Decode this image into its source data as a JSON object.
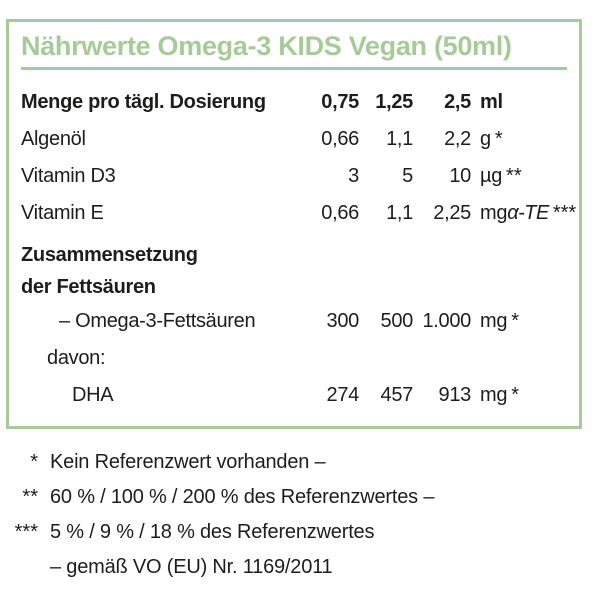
{
  "colors": {
    "accent": "#a6cb98",
    "text": "#1d1d1b"
  },
  "box": {
    "title": "Nährwerte Omega-3 KIDS Vegan (50ml)"
  },
  "table": {
    "rows": [
      {
        "label": "Menge pro tägl. Dosierung",
        "v1": "0,75",
        "v2": "1,25",
        "v3": "2,5",
        "unit": "ml",
        "marker": ""
      },
      {
        "label": "Algenöl",
        "v1": "0,66",
        "v2": "1,1",
        "v3": "2,2",
        "unit": "g",
        "marker": "*"
      },
      {
        "label": "Vitamin D3",
        "v1": "3",
        "v2": "5",
        "v3": "10",
        "unit": "µg",
        "marker": "**"
      },
      {
        "label": "Vitamin E",
        "v1": "0,66",
        "v2": "1,1",
        "v3": "2,25",
        "unit": "mg",
        "unit_suffix": "α-TE",
        "marker": "***"
      },
      {
        "label_line1": "Zusammensetzung",
        "label_line2": "der Fettsäuren"
      },
      {
        "label": "– Omega-3-Fettsäuren",
        "v1": "300",
        "v2": "500",
        "v3": "1.000",
        "unit": "mg",
        "marker": "*"
      },
      {
        "label": "davon:"
      },
      {
        "label": "DHA",
        "v1": "274",
        "v2": "457",
        "v3": "913",
        "unit": "mg",
        "marker": "*"
      }
    ]
  },
  "footnotes": [
    {
      "marker": "*",
      "text": "Kein Referenzwert vorhanden –"
    },
    {
      "marker": "**",
      "text": "60 % / 100 % / 200 % des Referenzwertes –"
    },
    {
      "marker": "***",
      "text": "5 % / 9 % / 18 % des Referenzwertes"
    },
    {
      "marker": "",
      "text": "– gemäß VO (EU) Nr. 1169/2011"
    }
  ]
}
